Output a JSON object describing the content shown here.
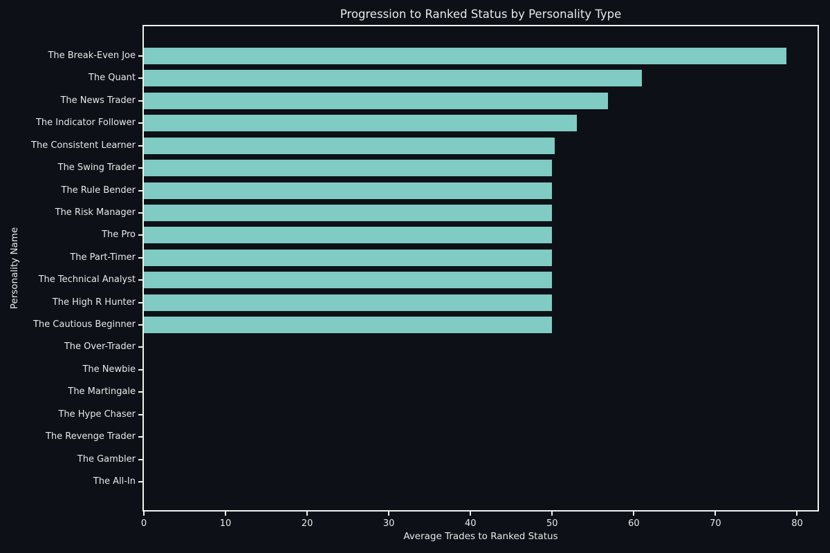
{
  "chart_data": {
    "type": "bar",
    "orientation": "horizontal",
    "title": "Progression to Ranked Status by Personality Type",
    "xlabel": "Average Trades to Ranked Status",
    "ylabel": "Personality Name",
    "categories": [
      "The Break-Even Joe",
      "The Quant",
      "The News Trader",
      "The Indicator Follower",
      "The Consistent Learner",
      "The Swing Trader",
      "The Rule Bender",
      "The Risk Manager",
      "The Pro",
      "The Part-Timer",
      "The Technical Analyst",
      "The High R Hunter",
      "The Cautious Beginner",
      "The Over-Trader",
      "The Newbie",
      "The Martingale",
      "The Hype Chaser",
      "The Revenge Trader",
      "The Gambler",
      "The All-In"
    ],
    "values": [
      78.7,
      61.0,
      56.8,
      53.0,
      50.3,
      50.0,
      50.0,
      50.0,
      50.0,
      50.0,
      50.0,
      50.0,
      50.0,
      0,
      0,
      0,
      0,
      0,
      0,
      0
    ],
    "xticks": [
      0,
      10,
      20,
      30,
      40,
      50,
      60,
      70,
      80
    ],
    "xlim": [
      0,
      82.5
    ],
    "grid": false,
    "legend": false,
    "colors": {
      "background": "#0d1117",
      "bar": "#80cbc4",
      "text": "#e8e8e8",
      "spine": "#f2f2f2"
    }
  }
}
